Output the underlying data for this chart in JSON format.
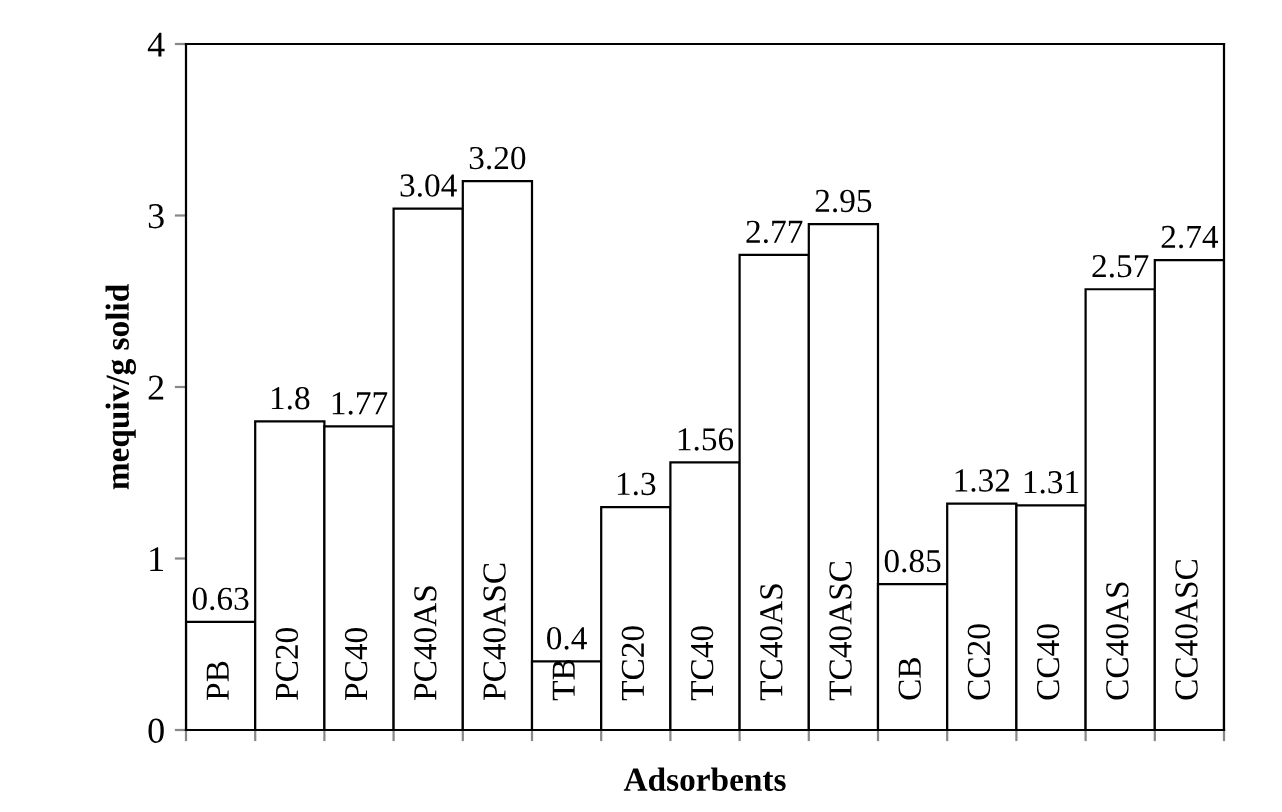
{
  "chart_data": {
    "type": "bar",
    "categories": [
      "PB",
      "PC20",
      "PC40",
      "PC40AS",
      "PC40ASC",
      "TB",
      "TC20",
      "TC40",
      "TC40AS",
      "TC40ASC",
      "CB",
      "CC20",
      "CC40",
      "CC40AS",
      "CC40ASC"
    ],
    "values": [
      0.63,
      1.8,
      1.77,
      3.04,
      3.2,
      0.4,
      1.3,
      1.56,
      2.77,
      2.95,
      0.85,
      1.32,
      1.31,
      2.57,
      2.74
    ],
    "value_labels": [
      "0.63",
      "1.8",
      "1.77",
      "3.04",
      "3.20",
      "0.4",
      "1.3",
      "1.56",
      "2.77",
      "2.95",
      "0.85",
      "1.32",
      "1.31",
      "2.57",
      "2.74"
    ],
    "color": "#ffffff",
    "xlabel": "Adsorbents",
    "ylabel": "mequiv/g solid",
    "ylim": [
      0,
      4
    ],
    "yticks": [
      0,
      1,
      2,
      3,
      4
    ],
    "grid": false,
    "legend": false
  }
}
